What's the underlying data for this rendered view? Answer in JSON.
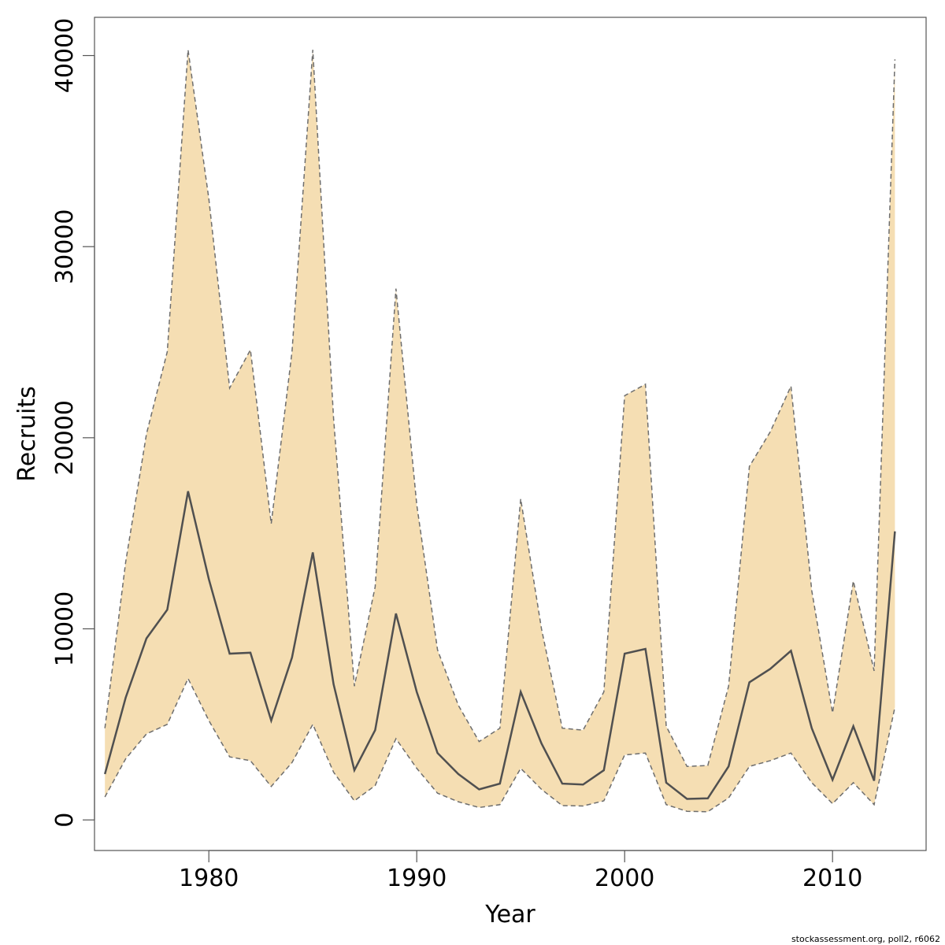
{
  "chart_data": {
    "type": "area",
    "xlabel": "Year",
    "ylabel": "Recruits",
    "xlim": [
      1974.5,
      2014.5
    ],
    "ylim": [
      -1600,
      42000
    ],
    "x_ticks": [
      1980,
      1990,
      2000,
      2010
    ],
    "y_ticks": [
      0,
      10000,
      20000,
      30000,
      40000
    ],
    "grid": false,
    "legend": "none",
    "x": [
      1975,
      1976,
      1977,
      1978,
      1979,
      1980,
      1981,
      1982,
      1983,
      1984,
      1985,
      1986,
      1987,
      1988,
      1989,
      1990,
      1991,
      1992,
      1993,
      1994,
      1995,
      1996,
      1997,
      1998,
      1999,
      2000,
      2001,
      2002,
      2003,
      2004,
      2005,
      2006,
      2007,
      2008,
      2009,
      2010,
      2011,
      2012,
      2013
    ],
    "series": [
      {
        "role": "upper",
        "style": "dashed",
        "values": [
          4800,
          13500,
          20200,
          24500,
          40300,
          32500,
          22600,
          24600,
          15500,
          24500,
          40300,
          21000,
          7000,
          12200,
          27800,
          16500,
          8900,
          6000,
          4100,
          4800,
          16800,
          10000,
          4800,
          4700,
          6700,
          22200,
          22800,
          4900,
          2800,
          2850,
          7000,
          18500,
          20300,
          22700,
          12000,
          5600,
          12500,
          7800,
          39800
        ]
      },
      {
        "role": "estimate",
        "style": "solid",
        "values": [
          2400,
          6400,
          9500,
          11000,
          17200,
          12600,
          8700,
          8750,
          5200,
          8500,
          14000,
          7100,
          2600,
          4700,
          10800,
          6700,
          3500,
          2400,
          1600,
          1900,
          6700,
          4000,
          1900,
          1850,
          2600,
          8700,
          8950,
          1950,
          1100,
          1130,
          2800,
          7200,
          7900,
          8850,
          4800,
          2100,
          4900,
          2050,
          15100
        ]
      },
      {
        "role": "lower",
        "style": "dashed",
        "values": [
          1200,
          3200,
          4500,
          5000,
          7400,
          5200,
          3300,
          3100,
          1750,
          3000,
          5000,
          2500,
          1000,
          1800,
          4250,
          2700,
          1400,
          950,
          650,
          800,
          2700,
          1600,
          750,
          730,
          1000,
          3400,
          3500,
          800,
          450,
          430,
          1150,
          2800,
          3100,
          3500,
          1950,
          850,
          1950,
          800,
          5900
        ]
      }
    ],
    "colors": {
      "band_fill": "#F5DEB3",
      "band_edge": "#6e6e6e",
      "estimate_line": "#505050",
      "frame": "#555555"
    },
    "footer_note": "stockassessment.org, poll2, r6062"
  }
}
